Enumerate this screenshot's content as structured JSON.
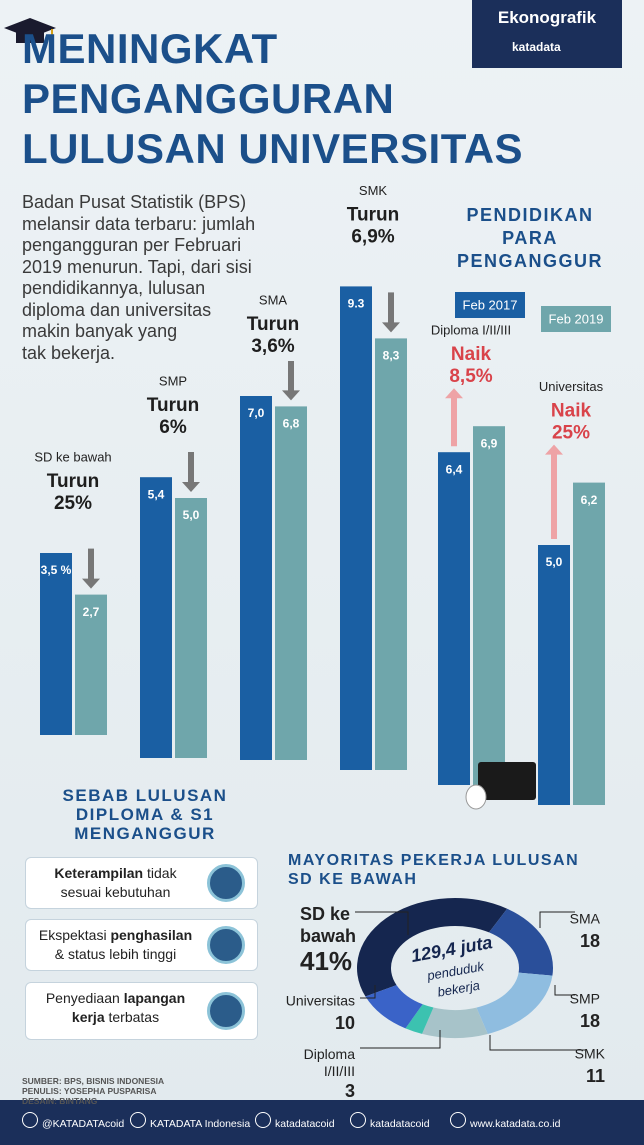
{
  "brand": {
    "name": "Ekonografik",
    "logo": "katadata"
  },
  "header": {
    "title": [
      "MENINGKAT",
      "PENGANGGURAN",
      "LULUSAN UNIVERSITAS"
    ]
  },
  "intro": [
    "Badan Pusat Statistik (BPS)",
    "melansir data terbaru: jumlah",
    "pengangguran per Februari",
    "2019 menurun. Tapi, dari sisi",
    "pendidikannya, lulusan",
    "diploma dan universitas",
    "makin banyak yang",
    "tak bekerja."
  ],
  "chart_data": [
    {
      "type": "bar",
      "title": [
        "PENDIDIKAN",
        "PARA",
        "PENGANGGUR"
      ],
      "categories": [
        "SD ke bawah",
        "SMP",
        "SMA",
        "SMK",
        "Diploma I/II/III",
        "Universitas"
      ],
      "series": [
        {
          "name": "Feb 2017",
          "color": "#1a5fa3",
          "values": [
            3.5,
            5.4,
            7.0,
            9.3,
            6.4,
            5.0
          ],
          "value_labels": [
            "3,5 %",
            "5,4",
            "7,0",
            "9.3",
            "6,4",
            "5,0"
          ]
        },
        {
          "name": "Feb 2019",
          "color": "#6fa6ab",
          "values": [
            2.7,
            5.0,
            6.8,
            8.3,
            6.9,
            6.2
          ],
          "value_labels": [
            "2,7",
            "5,0",
            "6,8",
            "8,3",
            "6,9",
            "6,2"
          ]
        }
      ],
      "annotations": [
        {
          "direction": "Turun",
          "change": "25%",
          "color": "#1e1e1e"
        },
        {
          "direction": "Turun",
          "change": "6%",
          "color": "#1e1e1e"
        },
        {
          "direction": "Turun",
          "change": "3,6%",
          "color": "#1e1e1e"
        },
        {
          "direction": "Turun",
          "change": "6,9%",
          "color": "#1e1e1e"
        },
        {
          "direction": "Naik",
          "change": "8,5%",
          "color": "#d9434a"
        },
        {
          "direction": "Naik",
          "change": "25%",
          "color": "#d9434a"
        }
      ]
    },
    {
      "type": "donut",
      "title": [
        "MAYORITAS PEKERJA LULUSAN",
        "SD KE BAWAH"
      ],
      "center": [
        "129,4 juta",
        "penduduk",
        "bekerja"
      ],
      "categories": [
        "SD ke bawah",
        "SMA",
        "SMP",
        "SMK",
        "Diploma I/II/III",
        "Universitas"
      ],
      "values": [
        41,
        18,
        18,
        11,
        3,
        10
      ],
      "value_labels": [
        "41%",
        "18",
        "18",
        "11",
        "3",
        "10"
      ],
      "colors": [
        "#15264f",
        "#2a4f9a",
        "#8fbde0",
        "#a7c3c9",
        "#3cc2b0",
        "#3a63c8"
      ]
    }
  ],
  "causes": {
    "title": [
      "SEBAB LULUSAN",
      "DIPLOMA & S1",
      "MENGANGGUR"
    ],
    "items": [
      [
        {
          "text": "Keterampilan",
          "bold": true
        },
        {
          "text": " tidak sesuai kebutuhan",
          "bold": false
        }
      ],
      [
        {
          "text": "Ekspektasi ",
          "bold": false
        },
        {
          "text": "penghasilan",
          "bold": true
        },
        {
          "text": " & status lebih tinggi",
          "bold": false
        }
      ],
      [
        {
          "text": "Penyediaan ",
          "bold": false
        },
        {
          "text": "lapangan kerja",
          "bold": true
        },
        {
          "text": " terbatas",
          "bold": false
        }
      ]
    ]
  },
  "footer": {
    "credits": [
      "SUMBER: BPS, BISNIS INDONESIA",
      "PENULIS: YOSEPHA PUSPARISA",
      "DESAIN: BINTANG"
    ],
    "social": [
      "@KATADATAcoid",
      "KATADATA Indonesia",
      "katadatacoid",
      "katadatacoid",
      "www.katadata.co.id"
    ]
  }
}
